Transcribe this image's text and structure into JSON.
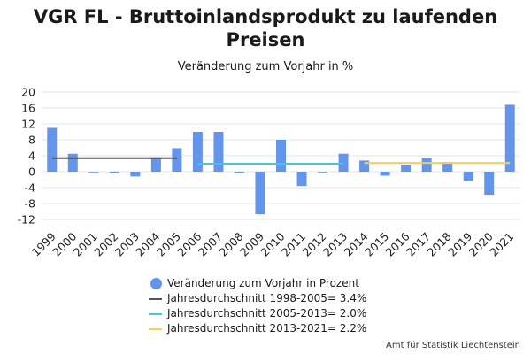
{
  "title_line1": "VGR FL - Bruttoinlandsprodukt zu laufenden",
  "title_line2": "Preisen",
  "subtitle": "Veränderung zum Vorjahr in %",
  "credits": "Amt für Statistik Liechtenstein",
  "chart_data": {
    "type": "bar",
    "categories": [
      "1999",
      "2000",
      "2001",
      "2002",
      "2003",
      "2004",
      "2005",
      "2006",
      "2007",
      "2008",
      "2009",
      "2010",
      "2011",
      "2012",
      "2013",
      "2014",
      "2015",
      "2016",
      "2017",
      "2018",
      "2019",
      "2020",
      "2021"
    ],
    "series": [
      {
        "name": "Veränderung zum Vorjahr in Prozent",
        "type": "bar",
        "color": "#6495ED",
        "values": [
          11.0,
          4.5,
          0.0,
          -0.3,
          -1.2,
          3.6,
          5.9,
          10.0,
          10.0,
          -0.3,
          -10.7,
          8.0,
          -3.6,
          0.0,
          4.5,
          2.8,
          -1.0,
          1.7,
          3.4,
          2.4,
          -2.3,
          -5.8,
          16.8
        ]
      },
      {
        "name": "Jahresdurchschnitt 1998-2005= 3.4%",
        "type": "line",
        "color": "#555555",
        "from": "1999",
        "to": "2005",
        "value": 3.4
      },
      {
        "name": "Jahresdurchschnitt 2005-2013= 2.0%",
        "type": "line",
        "color": "#40C8E0",
        "from": "2006",
        "to": "2013",
        "value": 2.0
      },
      {
        "name": "Jahresdurchschnitt 2013-2021= 2.2%",
        "type": "line",
        "color": "#F7CE5E",
        "from": "2014",
        "to": "2021",
        "value": 2.2
      }
    ],
    "yticks": [
      20,
      16,
      12,
      8,
      4,
      0,
      -4,
      -8,
      -12
    ],
    "ylim": [
      -12,
      20
    ],
    "grid": true,
    "legend_position": "bottom"
  }
}
